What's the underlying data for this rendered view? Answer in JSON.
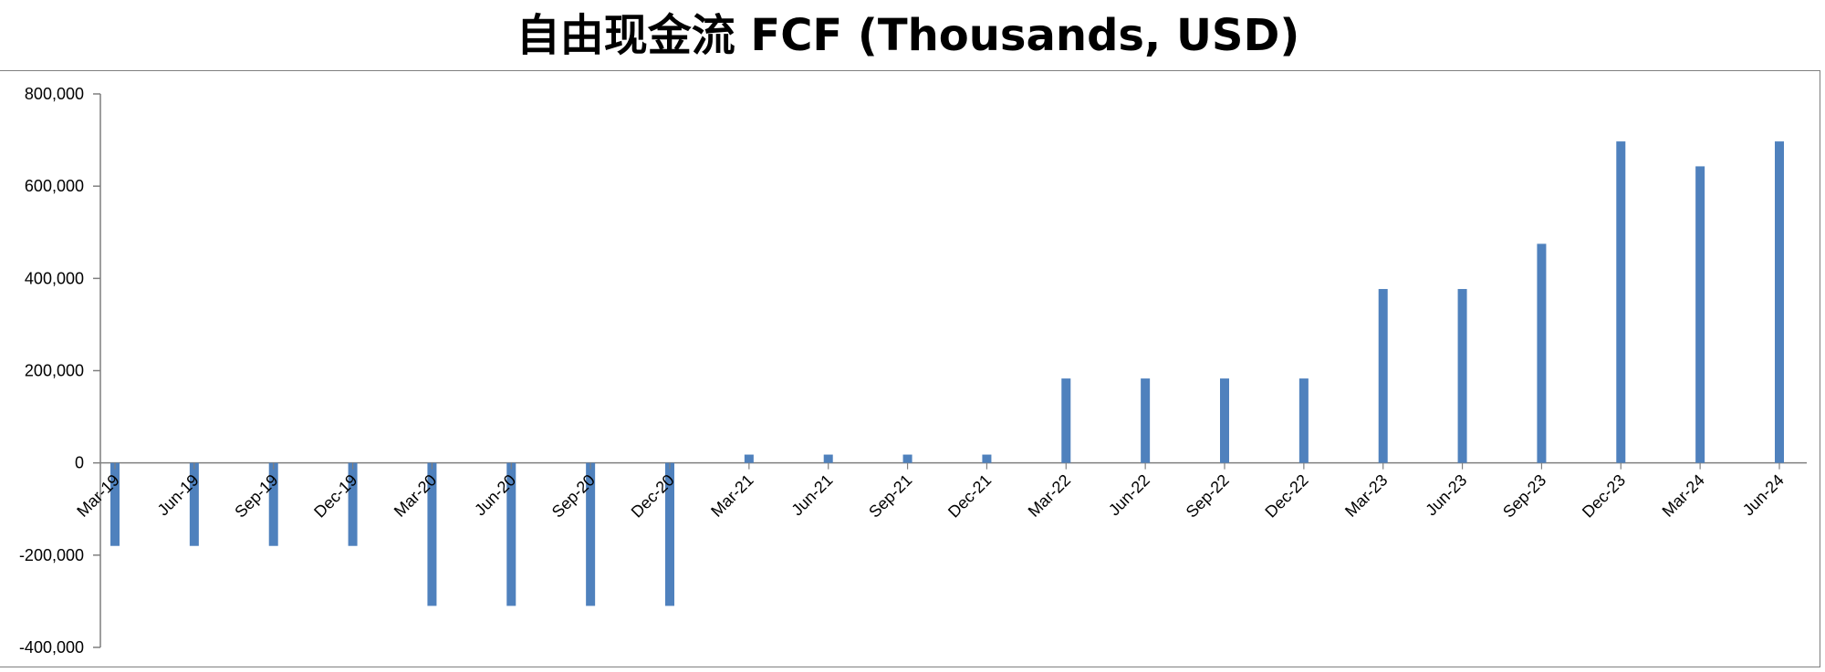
{
  "chart_data": {
    "type": "bar",
    "title": "自由现金流 FCF (Thousands, USD)",
    "xlabel": "",
    "ylabel": "",
    "ylim": [
      -400000,
      800000
    ],
    "yticks": [
      800000,
      600000,
      400000,
      200000,
      0,
      -200000,
      -400000
    ],
    "ytick_labels": [
      "800,000",
      "600,000",
      "400,000",
      "200,000",
      "0",
      "-200,000",
      "-400,000"
    ],
    "grid": false,
    "legend": "none",
    "bar_color": "#4f81bd",
    "categories": [
      "Mar-19",
      "Jun-19",
      "Sep-19",
      "Dec-19",
      "Mar-20",
      "Jun-20",
      "Sep-20",
      "Dec-20",
      "Mar-21",
      "Jun-21",
      "Sep-21",
      "Dec-21",
      "Mar-22",
      "Jun-22",
      "Sep-22",
      "Dec-22",
      "Mar-23",
      "Jun-23",
      "Sep-23",
      "Dec-23",
      "Mar-24",
      "Jun-24"
    ],
    "values": [
      -180000,
      -180000,
      -180000,
      -180000,
      -310000,
      -310000,
      -310000,
      -310000,
      18000,
      18000,
      18000,
      18000,
      183000,
      183000,
      183000,
      183000,
      377000,
      377000,
      475000,
      697000,
      643000,
      697000
    ]
  }
}
